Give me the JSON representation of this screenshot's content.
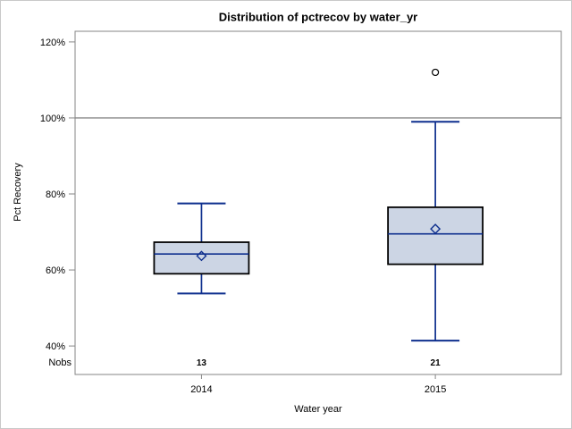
{
  "chart_data": {
    "type": "boxplot",
    "title": "Distribution of pctrecov by water_yr",
    "xlabel": "Water year",
    "ylabel": "Pct Recovery",
    "nobs_label": "Nobs",
    "y_ticks": [
      {
        "value": 40,
        "label": "40%"
      },
      {
        "value": 60,
        "label": "60%"
      },
      {
        "value": 80,
        "label": "80%"
      },
      {
        "value": 100,
        "label": "100%"
      },
      {
        "value": 120,
        "label": "120%"
      }
    ],
    "ylim": [
      32.5,
      122.8
    ],
    "reference_line": 100,
    "grid": "off",
    "legend": "none",
    "categories": [
      "2014",
      "2015"
    ],
    "series": [
      {
        "category": "2014",
        "n": 13,
        "whisker_low": 53.8,
        "q1": 59.0,
        "median": 64.2,
        "mean": 63.7,
        "q3": 67.3,
        "whisker_high": 77.5,
        "outliers": []
      },
      {
        "category": "2015",
        "n": 21,
        "whisker_low": 41.4,
        "q1": 61.5,
        "median": 69.5,
        "mean": 70.8,
        "q3": 76.5,
        "whisker_high": 99.0,
        "outliers": [
          112
        ]
      }
    ],
    "category_positions": [
      0.26,
      0.741
    ]
  },
  "colors": {
    "box_fill": "#ccd5e4",
    "box_border": "#000000",
    "line": "#0e2f8e",
    "outlier": "#000000",
    "reference_line": "#9b9b9b",
    "frame": "#868686",
    "page_border": "#c9c9c9",
    "text": "#000000"
  }
}
